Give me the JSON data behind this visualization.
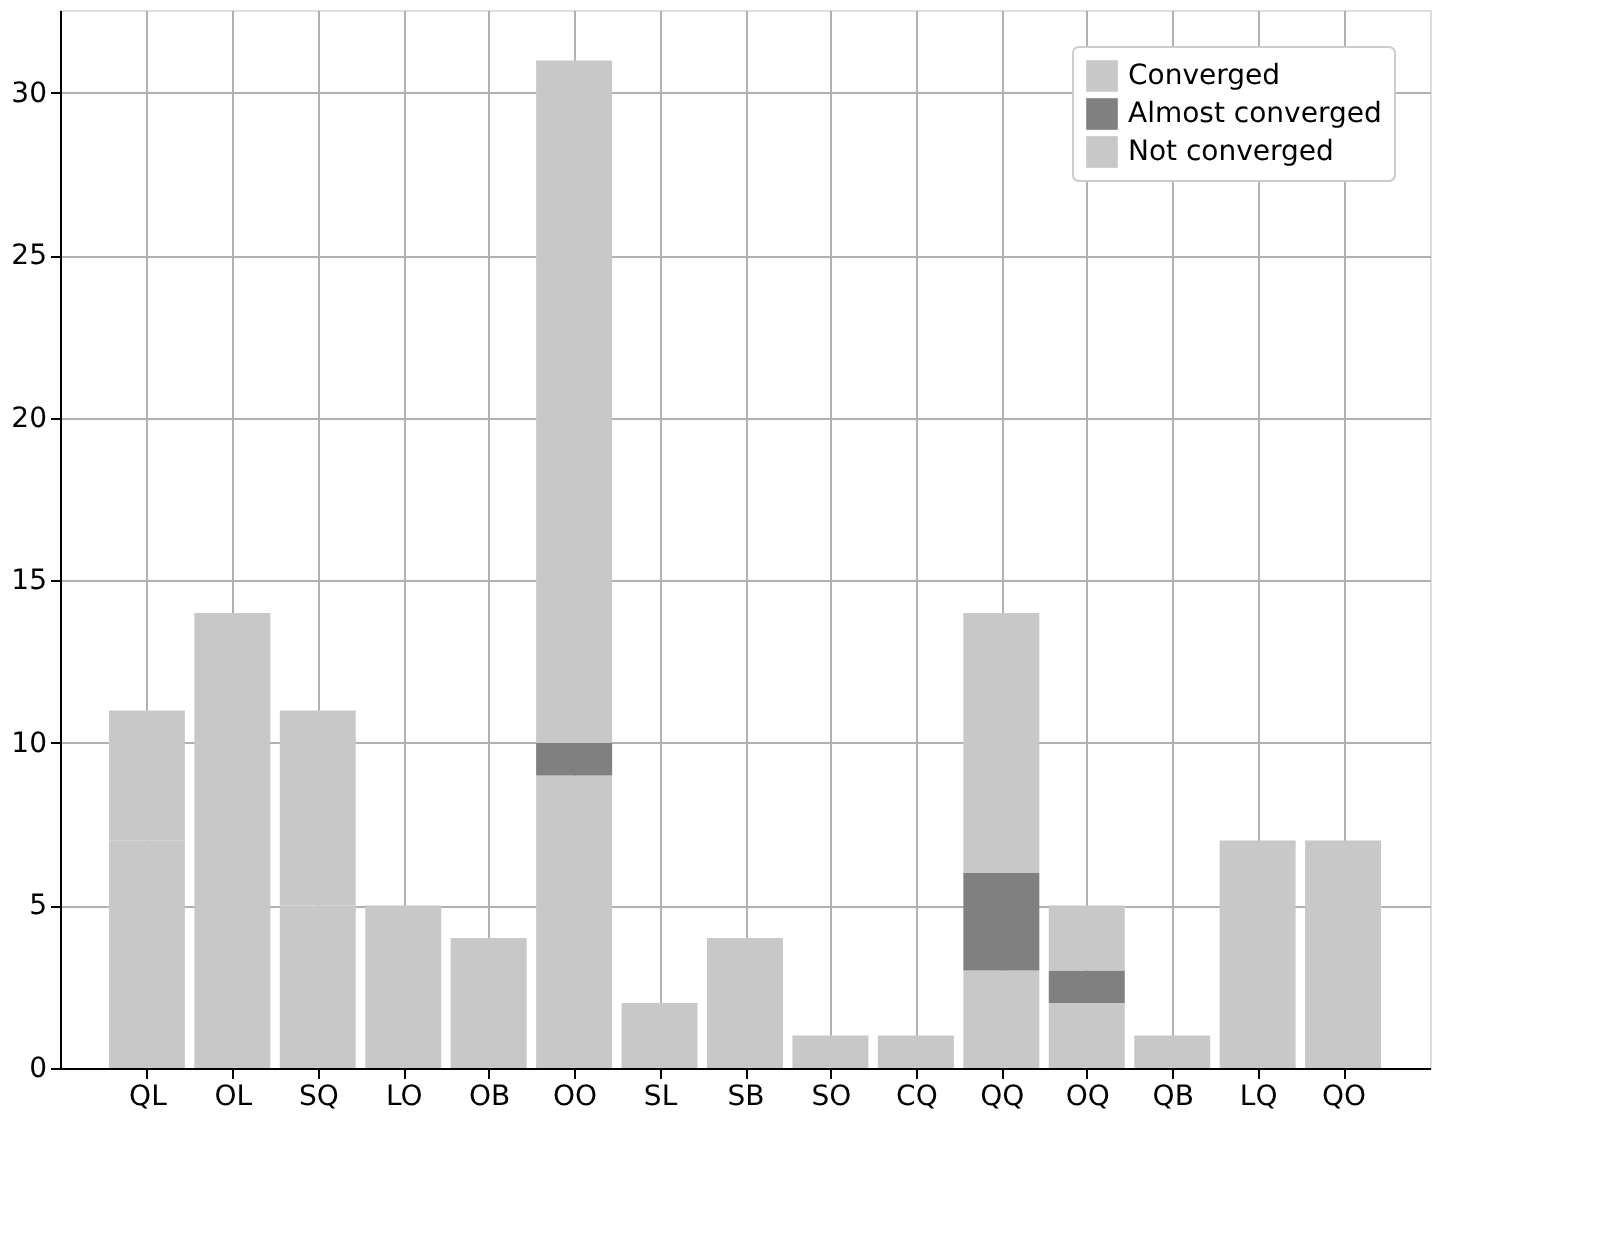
{
  "chart_data": {
    "type": "bar",
    "stacked": true,
    "categories": [
      "QL",
      "OL",
      "SQ",
      "LO",
      "OB",
      "OO",
      "SL",
      "SB",
      "SO",
      "CQ",
      "QQ",
      "OQ",
      "QB",
      "LQ",
      "QO"
    ],
    "series": [
      {
        "name": "Converged",
        "color": "#c8c8c8",
        "values": [
          7,
          14,
          5,
          2,
          4,
          9,
          2,
          4,
          1,
          1,
          3,
          2,
          1,
          0,
          0
        ]
      },
      {
        "name": "Almost converged",
        "color": "#808080",
        "values": [
          0,
          0,
          0,
          0,
          0,
          1,
          0,
          0,
          0,
          0,
          3,
          1,
          0,
          0,
          0
        ]
      },
      {
        "name": "Not converged",
        "color": "#c8c8c8",
        "values": [
          4,
          0,
          6,
          3,
          0,
          21,
          0,
          0,
          0,
          0,
          8,
          2,
          0,
          7,
          7
        ]
      }
    ],
    "ylim": [
      0,
      32.55
    ],
    "yticks": [
      0,
      5,
      10,
      15,
      20,
      25,
      30
    ],
    "grid": true,
    "legend": "top right"
  }
}
